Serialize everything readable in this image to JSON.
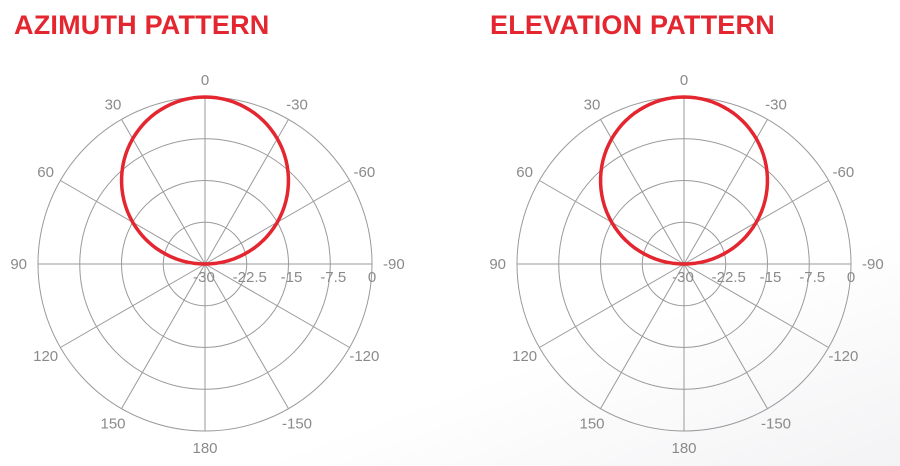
{
  "chart_data": [
    {
      "type": "polar-line",
      "title": "AZIMUTH PATTERN",
      "angle_unit": "deg",
      "angle_ticks": [
        0,
        -30,
        -60,
        -90,
        -120,
        -150,
        180,
        150,
        120,
        90,
        60,
        30
      ],
      "angle_direction": "counterclockwise-positive, 0 at top",
      "radial_ticks": [
        -30,
        -22.5,
        -15,
        -7.5,
        0
      ],
      "radial_tick_labels": [
        "-30",
        "-22.5",
        "-15",
        "-7.5",
        "0"
      ],
      "rlim": [
        -30,
        0
      ],
      "grid": true,
      "series_color": "#e3262f",
      "angles": [
        -180,
        -90,
        -75,
        -60,
        -45,
        -30,
        -15,
        0,
        15,
        30,
        45,
        60,
        75,
        90,
        180
      ],
      "values": [
        -30,
        -30,
        -22.2,
        -15,
        -8.8,
        -4,
        -1,
        0,
        -1,
        -4,
        -8.8,
        -15,
        -22.2,
        -30,
        -30
      ]
    },
    {
      "type": "polar-line",
      "title": "ELEVATION PATTERN",
      "angle_unit": "deg",
      "angle_ticks": [
        0,
        -30,
        -60,
        -90,
        -120,
        -150,
        180,
        150,
        120,
        90,
        60,
        30
      ],
      "angle_direction": "counterclockwise-positive, 0 at top",
      "radial_ticks": [
        -30,
        -22.5,
        -15,
        -7.5,
        0
      ],
      "radial_tick_labels": [
        "-30",
        "-22.5",
        "-15",
        "-7.5",
        "0"
      ],
      "rlim": [
        -30,
        0
      ],
      "grid": true,
      "series_color": "#e3262f",
      "angles": [
        -180,
        -90,
        -75,
        -60,
        -45,
        -30,
        -15,
        0,
        15,
        30,
        45,
        60,
        75,
        90,
        180
      ],
      "values": [
        -30,
        -30,
        -22.2,
        -15,
        -8.8,
        -4,
        -1,
        0,
        -1,
        -4,
        -8.8,
        -15,
        -22.2,
        -30,
        -30
      ]
    }
  ]
}
